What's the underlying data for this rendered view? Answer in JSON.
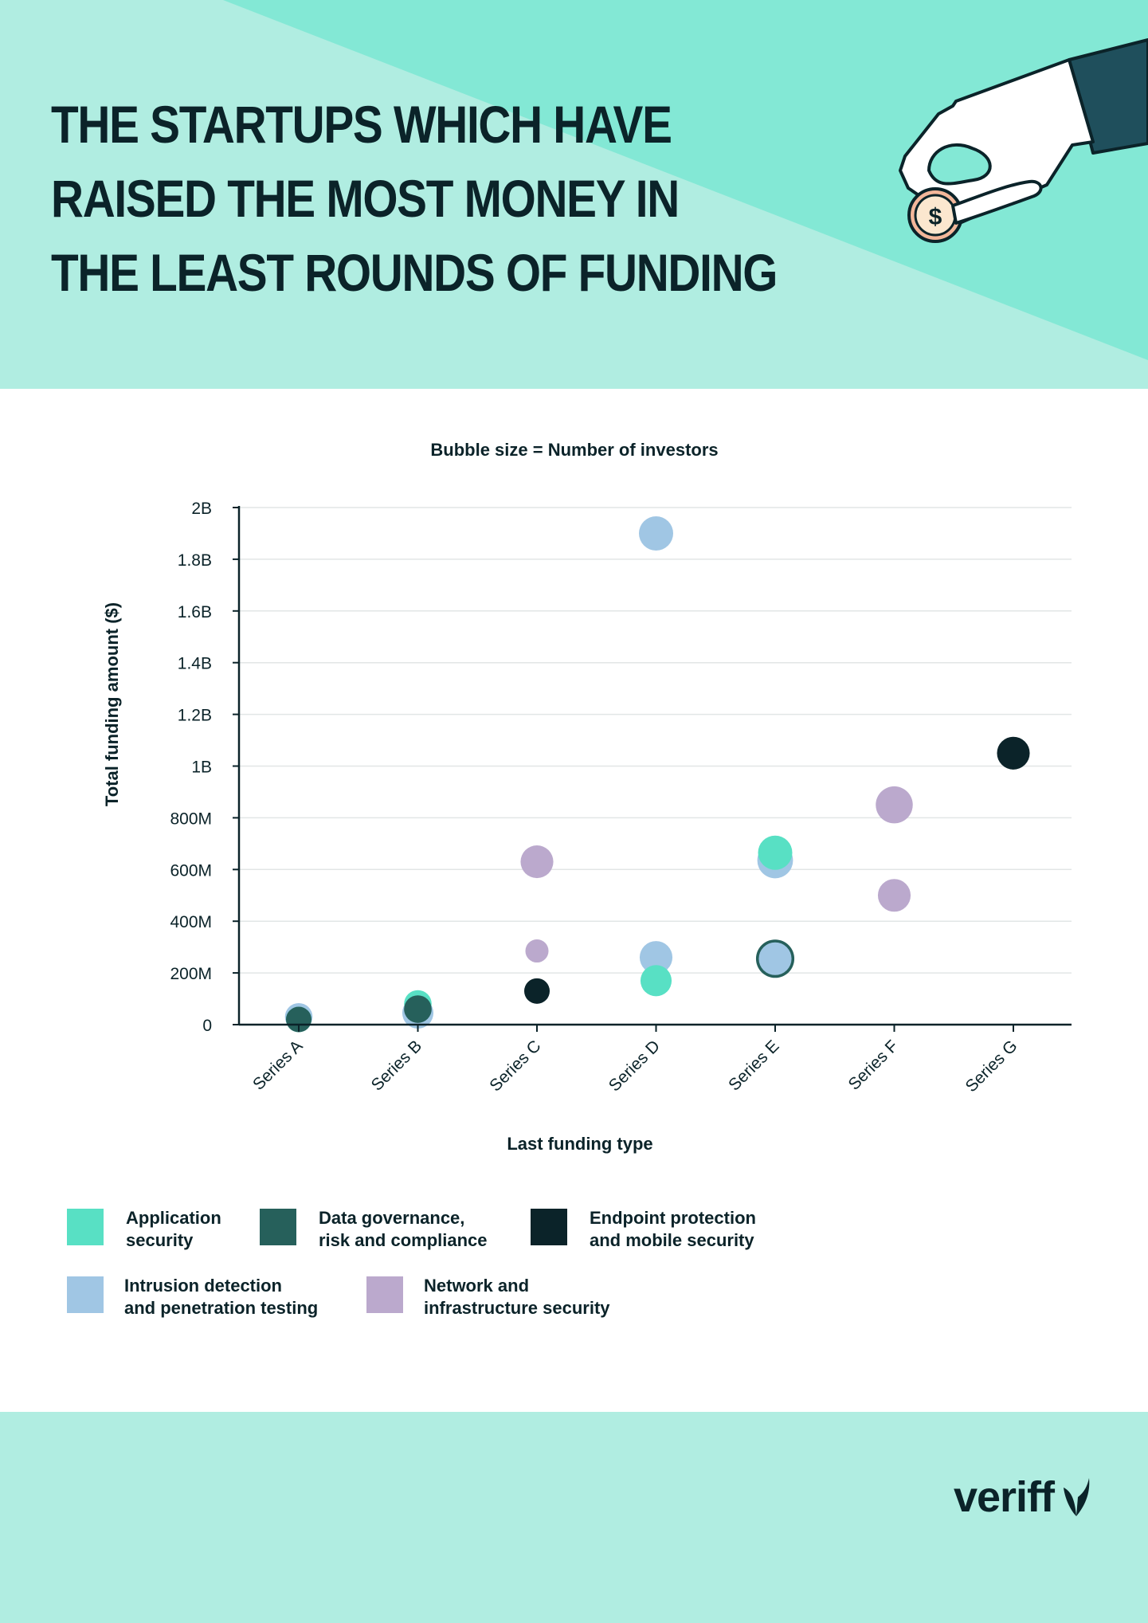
{
  "header": {
    "title_lines": [
      "THE STARTUPS WHICH HAVE",
      "RAISED THE MOST MONEY IN",
      "THE LEAST ROUNDS OF FUNDING"
    ],
    "illustration": "hand-holding-dollar-coin",
    "coin_symbol": "$"
  },
  "colors": {
    "header_bg": "#b0ede1",
    "header_accent": "#83e8d5",
    "application_security": "#58e0c4",
    "data_governance": "#26605b",
    "endpoint_protection": "#0b2329",
    "intrusion_detection": "#a0c6e4",
    "network_infrastructure": "#bba9cd"
  },
  "chart_data": {
    "type": "scatter",
    "subtitle": "Bubble size = Number of investors",
    "xlabel": "Last funding type",
    "ylabel": "Total funding amount ($)",
    "categories": [
      "Series A",
      "Series B",
      "Series C",
      "Series D",
      "Series E",
      "Series F",
      "Series G"
    ],
    "y_ticks": [
      0,
      200000000,
      400000000,
      600000000,
      800000000,
      1000000000,
      1200000000,
      1400000000,
      1600000000,
      1800000000,
      2000000000
    ],
    "y_tick_labels": [
      "0",
      "200M",
      "400M",
      "600M",
      "800M",
      "1B",
      "1.2B",
      "1.4B",
      "1.6B",
      "1.8B",
      "2B"
    ],
    "ylim": [
      0,
      2000000000
    ],
    "grid": true,
    "legend_position": "bottom",
    "series": [
      {
        "name": "Application security",
        "color": "#58e0c4",
        "points": [
          {
            "x": "Series A",
            "y": 20000000,
            "investors": 4
          },
          {
            "x": "Series B",
            "y": 80000000,
            "investors": 5
          },
          {
            "x": "Series D",
            "y": 170000000,
            "investors": 7
          },
          {
            "x": "Series E",
            "y": 665000000,
            "investors": 9
          }
        ]
      },
      {
        "name": "Data governance, risk and compliance",
        "color": "#26605b",
        "points": [
          {
            "x": "Series A",
            "y": 20000000,
            "investors": 4
          },
          {
            "x": "Series B",
            "y": 60000000,
            "investors": 5
          },
          {
            "x": "Series E",
            "y": 255000000,
            "investors": 12
          }
        ]
      },
      {
        "name": "Endpoint protection and mobile security",
        "color": "#0b2329",
        "points": [
          {
            "x": "Series C",
            "y": 130000000,
            "investors": 4
          },
          {
            "x": "Series G",
            "y": 1050000000,
            "investors": 8
          }
        ]
      },
      {
        "name": "Intrusion detection and penetration testing",
        "color": "#a0c6e4",
        "points": [
          {
            "x": "Series A",
            "y": 30000000,
            "investors": 5
          },
          {
            "x": "Series B",
            "y": 45000000,
            "investors": 7
          },
          {
            "x": "Series D",
            "y": 1900000000,
            "investors": 9
          },
          {
            "x": "Series D",
            "y": 260000000,
            "investors": 8
          },
          {
            "x": "Series E",
            "y": 635000000,
            "investors": 10
          },
          {
            "x": "Series E",
            "y": 255000000,
            "investors": 8
          }
        ]
      },
      {
        "name": "Network and infrastructure security",
        "color": "#bba9cd",
        "points": [
          {
            "x": "Series C",
            "y": 630000000,
            "investors": 8
          },
          {
            "x": "Series C",
            "y": 285000000,
            "investors": 3
          },
          {
            "x": "Series F",
            "y": 850000000,
            "investors": 11
          },
          {
            "x": "Series F",
            "y": 500000000,
            "investors": 8
          }
        ]
      }
    ]
  },
  "legend": {
    "items": [
      {
        "label": "Application\nsecurity",
        "color": "#58e0c4"
      },
      {
        "label": "Data governance,\nrisk and compliance",
        "color": "#26605b"
      },
      {
        "label": "Endpoint protection\nand mobile security",
        "color": "#0b2329"
      },
      {
        "label": "Intrusion detection\nand penetration testing",
        "color": "#a0c6e4"
      },
      {
        "label": "Network and\ninfrastructure security",
        "color": "#bba9cd"
      }
    ]
  },
  "footer": {
    "brand": "veriff",
    "brand_icon": "veriff-leaf-logo"
  }
}
